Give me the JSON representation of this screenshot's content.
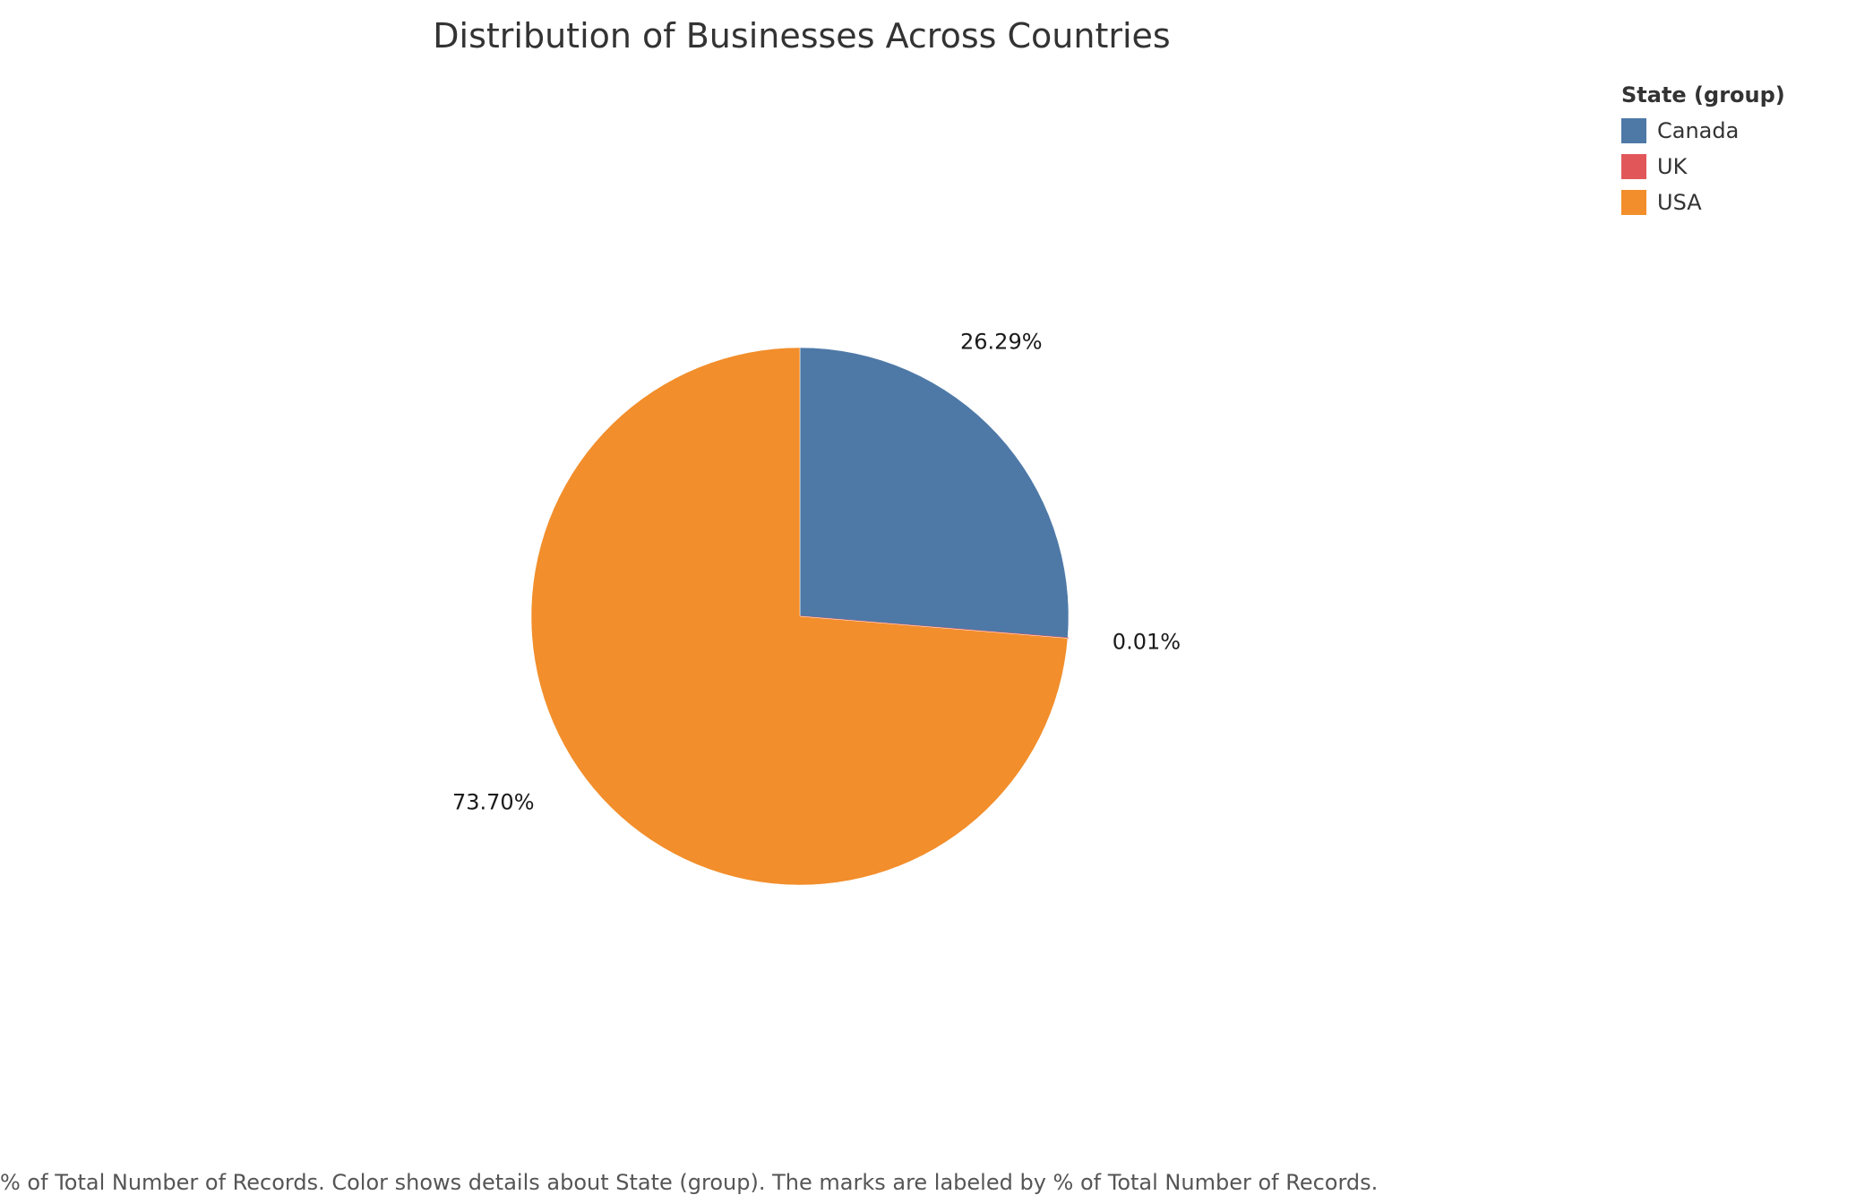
{
  "chart_data": {
    "type": "pie",
    "title": "Distribution of Businesses Across Countries",
    "legend": {
      "title": "State (group)",
      "placement": "top-right"
    },
    "slices": [
      {
        "name": "Canada",
        "value": 26.29,
        "label": "26.29%",
        "color": "#4e79a7"
      },
      {
        "name": "UK",
        "value": 0.01,
        "label": "0.01%",
        "color": "#e15759"
      },
      {
        "name": "USA",
        "value": 73.7,
        "label": "73.70%",
        "color": "#f28e2b"
      }
    ],
    "start_angle": "12 o'clock",
    "direction": "clockwise"
  },
  "footer": {
    "caption": "% of Total Number of Records.  Color shows details about State (group).  The marks are labeled by % of Total Number of Records."
  }
}
